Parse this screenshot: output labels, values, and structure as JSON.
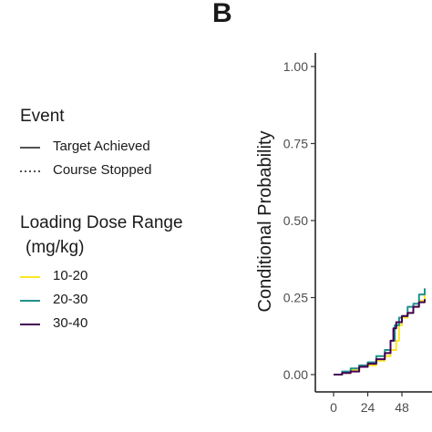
{
  "panel_label": "B",
  "legend": {
    "event": {
      "title": "Event",
      "items": [
        {
          "label": "Target Achieved",
          "linetype": "solid"
        },
        {
          "label": "Course Stopped",
          "linetype": "dotted"
        }
      ]
    },
    "dose": {
      "title_line1": "Loading Dose Range",
      "title_line2": "(mg/kg)",
      "items": [
        {
          "label": "10-20",
          "color": "#FDE725"
        },
        {
          "label": "20-30",
          "color": "#21908C"
        },
        {
          "label": "30-40",
          "color": "#440154"
        }
      ]
    }
  },
  "chart_data": {
    "type": "line",
    "title": "",
    "xlabel": "",
    "ylabel": "Conditional Probability",
    "xlim": [
      0,
      65
    ],
    "ylim": [
      0,
      1
    ],
    "x_ticks": [
      0,
      24,
      48
    ],
    "x_tick_labels": [
      "0",
      "24",
      "48"
    ],
    "y_ticks": [
      0,
      0.25,
      0.5,
      0.75,
      1
    ],
    "y_tick_labels": [
      "0.00",
      "0.25",
      "0.50",
      "0.75",
      "1.00"
    ],
    "grid": false,
    "series": [
      {
        "name": "10-20",
        "color": "#FDE725",
        "points": [
          [
            0,
            0
          ],
          [
            6,
            0.005
          ],
          [
            12,
            0.015
          ],
          [
            18,
            0.025
          ],
          [
            24,
            0.03
          ],
          [
            30,
            0.045
          ],
          [
            36,
            0.06
          ],
          [
            40,
            0.08
          ],
          [
            44,
            0.11
          ],
          [
            46,
            0.16
          ],
          [
            48,
            0.185
          ],
          [
            52,
            0.2
          ],
          [
            56,
            0.22
          ],
          [
            60,
            0.24
          ],
          [
            64,
            0.27
          ]
        ]
      },
      {
        "name": "20-30",
        "color": "#21908C",
        "points": [
          [
            0,
            0
          ],
          [
            6,
            0.01
          ],
          [
            12,
            0.02
          ],
          [
            18,
            0.03
          ],
          [
            24,
            0.04
          ],
          [
            30,
            0.06
          ],
          [
            36,
            0.08
          ],
          [
            40,
            0.11
          ],
          [
            43,
            0.16
          ],
          [
            46,
            0.185
          ],
          [
            48,
            0.19
          ],
          [
            52,
            0.22
          ],
          [
            56,
            0.23
          ],
          [
            60,
            0.26
          ],
          [
            64,
            0.28
          ]
        ]
      },
      {
        "name": "30-40",
        "color": "#440154",
        "points": [
          [
            0,
            0
          ],
          [
            6,
            0.005
          ],
          [
            12,
            0.01
          ],
          [
            18,
            0.025
          ],
          [
            24,
            0.035
          ],
          [
            30,
            0.05
          ],
          [
            36,
            0.07
          ],
          [
            40,
            0.11
          ],
          [
            42,
            0.15
          ],
          [
            44,
            0.17
          ],
          [
            48,
            0.19
          ],
          [
            52,
            0.2
          ],
          [
            56,
            0.22
          ],
          [
            60,
            0.235
          ],
          [
            64,
            0.245
          ]
        ]
      }
    ]
  }
}
